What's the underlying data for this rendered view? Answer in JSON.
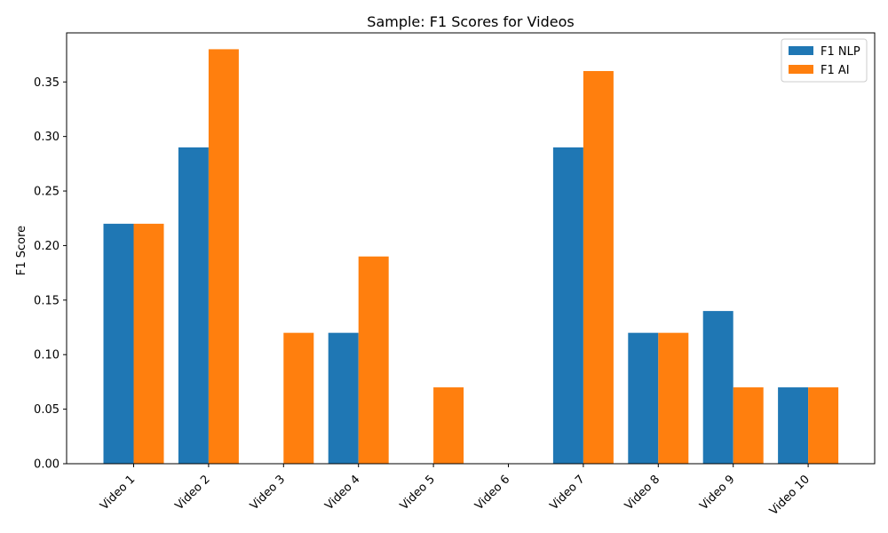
{
  "chart_data": {
    "type": "bar",
    "title": "Sample: F1 Scores for Videos",
    "xlabel": "",
    "ylabel": "F1 Score",
    "categories": [
      "Video 1",
      "Video 2",
      "Video 3",
      "Video 4",
      "Video 5",
      "Video 6",
      "Video 7",
      "Video 8",
      "Video 9",
      "Video 10"
    ],
    "series": [
      {
        "name": "F1 NLP",
        "color": "#1f77b4",
        "values": [
          0.22,
          0.29,
          0.0,
          0.12,
          0.0,
          0.0,
          0.29,
          0.12,
          0.14,
          0.07
        ]
      },
      {
        "name": "F1 AI",
        "color": "#ff7f0e",
        "values": [
          0.22,
          0.38,
          0.12,
          0.19,
          0.07,
          0.0,
          0.36,
          0.12,
          0.07,
          0.07
        ]
      }
    ],
    "ylim": [
      0,
      0.395
    ],
    "yticks": [
      "0.00",
      "0.05",
      "0.10",
      "0.15",
      "0.20",
      "0.25",
      "0.30",
      "0.35"
    ],
    "legend_position": "top-right",
    "grid": false
  }
}
